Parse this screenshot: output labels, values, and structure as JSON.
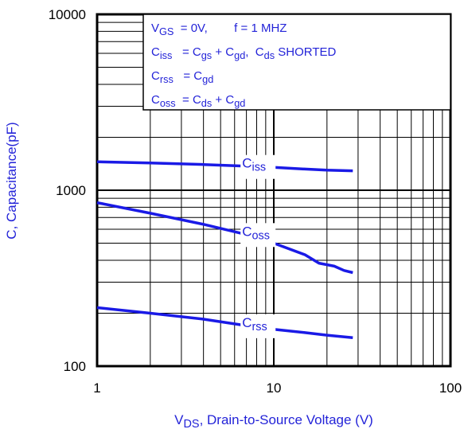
{
  "chart_data": {
    "type": "line",
    "x_scale": "log",
    "y_scale": "log",
    "xlim": [
      1,
      100
    ],
    "ylim": [
      100,
      10000
    ],
    "x_ticks": [
      "1",
      "10",
      "100"
    ],
    "y_ticks": [
      "100",
      "1000",
      "10000"
    ],
    "grid": true,
    "xlabel": {
      "main": "V",
      "sub": "DS",
      "rest": ", Drain-to-Source Voltage (V)"
    },
    "ylabel": "C, Capacitance(pF)",
    "legend_placement": "top-right",
    "legend_lines": [
      [
        {
          "t": "V"
        },
        {
          "s": "GS"
        },
        {
          "t": "  = 0V,        f = 1 MHZ"
        }
      ],
      [
        {
          "t": "C"
        },
        {
          "s": "iss"
        },
        {
          "t": "   = C"
        },
        {
          "s": "gs"
        },
        {
          "t": " + C"
        },
        {
          "s": "gd"
        },
        {
          "t": ",  C"
        },
        {
          "s": "ds"
        },
        {
          "t": " SHORTED"
        }
      ],
      [
        {
          "t": "C"
        },
        {
          "s": "rss"
        },
        {
          "t": "   = C"
        },
        {
          "s": "gd"
        }
      ],
      [
        {
          "t": "C"
        },
        {
          "s": "oss"
        },
        {
          "t": "  = C"
        },
        {
          "s": "ds"
        },
        {
          "t": " + C"
        },
        {
          "s": "gd"
        }
      ]
    ],
    "series": [
      {
        "name": "Ciss",
        "label_main": "C",
        "label_sub": "iss",
        "label_at": 6.9,
        "x": [
          1,
          2,
          4,
          7,
          10,
          15,
          20,
          28
        ],
        "y": [
          1450,
          1430,
          1400,
          1370,
          1350,
          1320,
          1300,
          1290
        ]
      },
      {
        "name": "Coss",
        "label_main": "C",
        "label_sub": "oss",
        "label_at": 6.9,
        "x": [
          1,
          2,
          4,
          7,
          10,
          15,
          18,
          22,
          25,
          28
        ],
        "y": [
          850,
          740,
          640,
          560,
          500,
          430,
          385,
          370,
          350,
          340
        ]
      },
      {
        "name": "Crss",
        "label_main": "C",
        "label_sub": "rss",
        "label_at": 6.9,
        "x": [
          1,
          2,
          4,
          7,
          10,
          15,
          20,
          28
        ],
        "y": [
          215,
          200,
          185,
          170,
          162,
          155,
          150,
          145
        ]
      }
    ],
    "line_color": "#1a1ae6"
  }
}
